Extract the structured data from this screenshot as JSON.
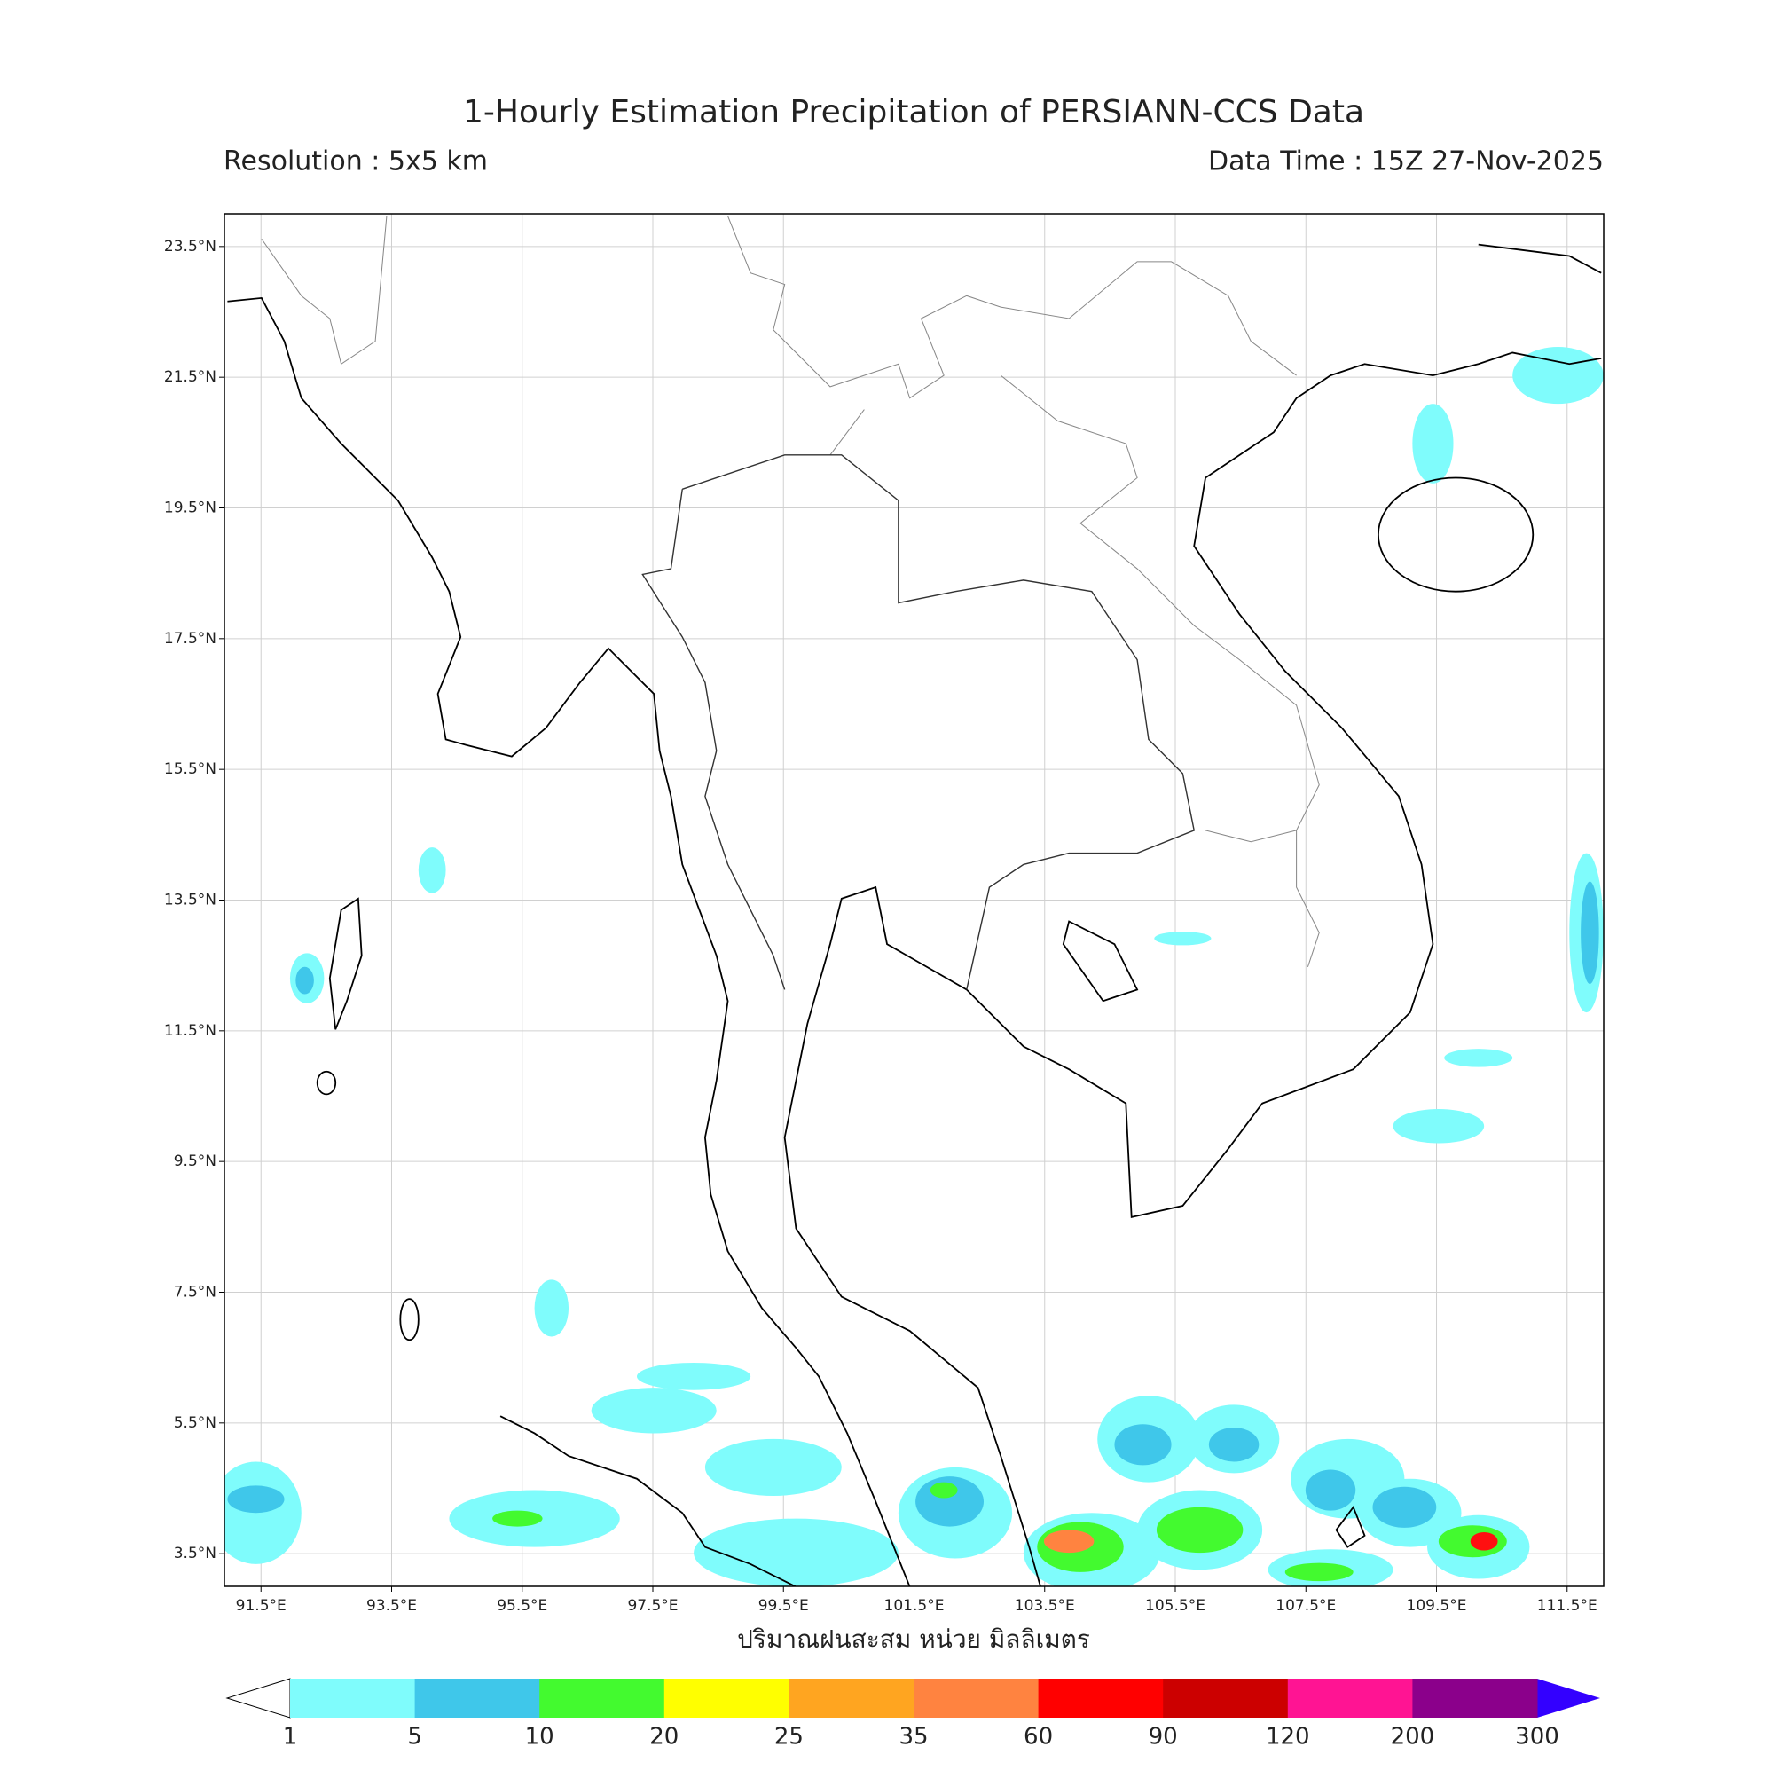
{
  "title": "1-Hourly Estimation Precipitation of PERSIANN-CCS Data",
  "resolution": "Resolution : 5x5 km",
  "data_time": "Data Time : 15Z 27-Nov-2025",
  "x_axis_label": "ปริมาณฝนสะสม หน่วย มิลลิเมตร",
  "lon_lim": [
    90.94,
    112.06
  ],
  "lat_lim": [
    3.0,
    24.0
  ],
  "lon_ticks": [
    {
      "value": 91.5,
      "label": "91.5°E"
    },
    {
      "value": 93.5,
      "label": "93.5°E"
    },
    {
      "value": 95.5,
      "label": "95.5°E"
    },
    {
      "value": 97.5,
      "label": "97.5°E"
    },
    {
      "value": 99.5,
      "label": "99.5°E"
    },
    {
      "value": 101.5,
      "label": "101.5°E"
    },
    {
      "value": 103.5,
      "label": "103.5°E"
    },
    {
      "value": 105.5,
      "label": "105.5°E"
    },
    {
      "value": 107.5,
      "label": "107.5°E"
    },
    {
      "value": 109.5,
      "label": "109.5°E"
    },
    {
      "value": 111.5,
      "label": "111.5°E"
    }
  ],
  "lat_ticks": [
    {
      "value": 3.5,
      "label": "3.5°N"
    },
    {
      "value": 5.5,
      "label": "5.5°N"
    },
    {
      "value": 7.5,
      "label": "7.5°N"
    },
    {
      "value": 9.5,
      "label": "9.5°N"
    },
    {
      "value": 11.5,
      "label": "11.5°N"
    },
    {
      "value": 13.5,
      "label": "13.5°N"
    },
    {
      "value": 15.5,
      "label": "15.5°N"
    },
    {
      "value": 17.5,
      "label": "17.5°N"
    },
    {
      "value": 19.5,
      "label": "19.5°N"
    },
    {
      "value": 21.5,
      "label": "21.5°N"
    },
    {
      "value": 23.5,
      "label": "23.5°N"
    }
  ],
  "grid": true,
  "colorbar": {
    "levels": [
      1,
      5,
      10,
      20,
      25,
      35,
      60,
      90,
      120,
      200,
      300
    ],
    "colors": [
      "#7ffcfc",
      "#3fc7ea",
      "#43fa2f",
      "#ffff00",
      "#ffa520",
      "#ff8340",
      "#ff0000",
      "#cc0000",
      "#ff1493",
      "#8b008b"
    ],
    "under_color": "#ffffff",
    "over_color": "#3300ff"
  }
}
